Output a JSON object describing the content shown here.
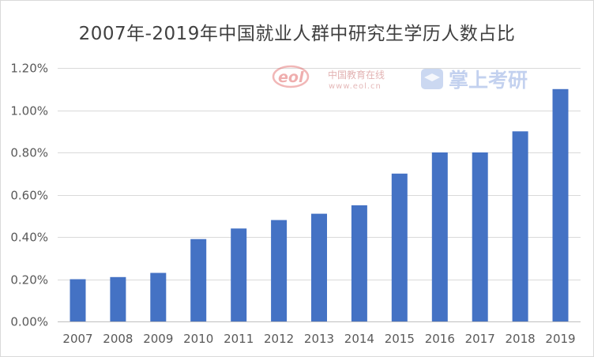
{
  "chart_data": {
    "type": "bar",
    "title": "2007年-2019年中国就业人群中研究生学历人数占比",
    "xlabel": "",
    "ylabel": "",
    "categories": [
      "2007",
      "2008",
      "2009",
      "2010",
      "2011",
      "2012",
      "2013",
      "2014",
      "2015",
      "2016",
      "2017",
      "2018",
      "2019"
    ],
    "values": [
      0.2,
      0.21,
      0.23,
      0.39,
      0.44,
      0.48,
      0.51,
      0.55,
      0.7,
      0.8,
      0.8,
      0.9,
      1.1
    ],
    "value_unit": "%",
    "ylim": [
      0,
      1.2
    ],
    "yticks": [
      "0.00%",
      "0.20%",
      "0.40%",
      "0.60%",
      "0.80%",
      "1.00%",
      "1.20%"
    ],
    "ytick_values": [
      0,
      0.2,
      0.4,
      0.6,
      0.8,
      1.0,
      1.2
    ],
    "grid": true,
    "legend": "none",
    "bar_color": "#4472c4"
  },
  "watermarks": {
    "eol_logo_text": "eol",
    "eol_cn": "中国教育在线",
    "eol_url": "www.eol.cn",
    "zsky_text": "掌上考研"
  },
  "colors": {
    "eol_red": "#e06060",
    "zsky_blue": "#6a8fd8"
  }
}
